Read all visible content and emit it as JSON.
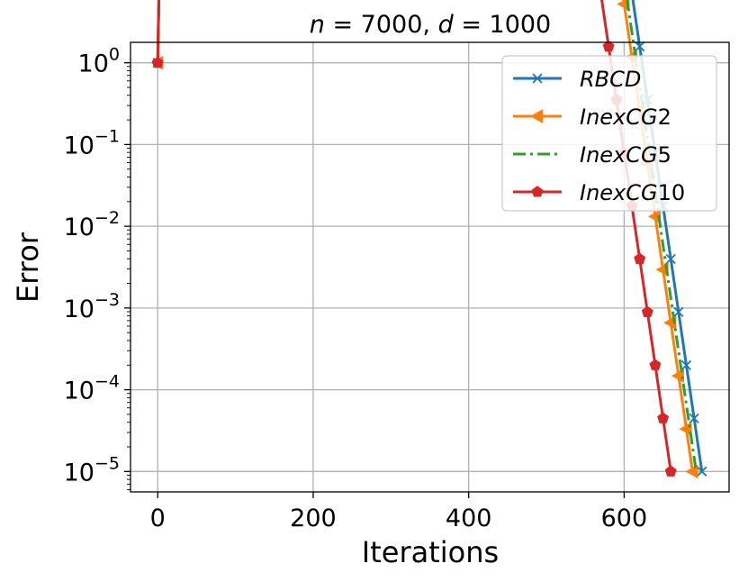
{
  "chart_data": {
    "type": "line",
    "title": "n = 7000, d = 1000",
    "title_parts": {
      "n_symbol": "n",
      "n_value": "= 7000,",
      "d_symbol": "d",
      "d_value": "= 1000"
    },
    "xlabel": "Iterations",
    "ylabel": "Error",
    "xscale": "linear",
    "yscale": "log",
    "xlim": [
      -35,
      735
    ],
    "ylim_log10": [
      -5.25,
      0.25
    ],
    "xticks": [
      0,
      200,
      400,
      600
    ],
    "xtick_labels": [
      "0",
      "200",
      "400",
      "600"
    ],
    "yticks_log10": [
      0,
      -1,
      -2,
      -3,
      -4,
      -5
    ],
    "ytick_labels": [
      {
        "base": "10",
        "exp": "0"
      },
      {
        "base": "10",
        "exp": "−1"
      },
      {
        "base": "10",
        "exp": "−2"
      },
      {
        "base": "10",
        "exp": "−3"
      },
      {
        "base": "10",
        "exp": "−4"
      },
      {
        "base": "10",
        "exp": "−5"
      }
    ],
    "grid": true,
    "legend_position": "top-right",
    "series": [
      {
        "name": "RBCD",
        "label_main": "RBCD",
        "label_sub": "",
        "color": "#1f77b4",
        "marker": "x",
        "linestyle": "solid",
        "x_end": 700,
        "y_end": 1e-05
      },
      {
        "name": "InexCG2",
        "label_main": "InexCG",
        "label_sub": "2",
        "color": "#ff7f0e",
        "marker": "triangle-left",
        "linestyle": "solid",
        "x_end": 688,
        "y_end": 1e-05
      },
      {
        "name": "InexCG5",
        "label_main": "InexCG",
        "label_sub": "5",
        "color": "#2ca02c",
        "marker": "none",
        "linestyle": "dashdot",
        "x_end": 692,
        "y_end": 1.1e-05
      },
      {
        "name": "InexCG10",
        "label_main": "InexCG",
        "label_sub": "10",
        "color": "#d62728",
        "marker": "pentagon",
        "linestyle": "solid",
        "x_end": 660,
        "y_end": 1e-05
      }
    ],
    "curve_shape": {
      "y_start": 1.0,
      "early_decay_rate": 0.065,
      "x_step": 10
    },
    "colors": {
      "axes": "#000000",
      "grid": "#b0b0b0",
      "background": "#ffffff"
    }
  }
}
